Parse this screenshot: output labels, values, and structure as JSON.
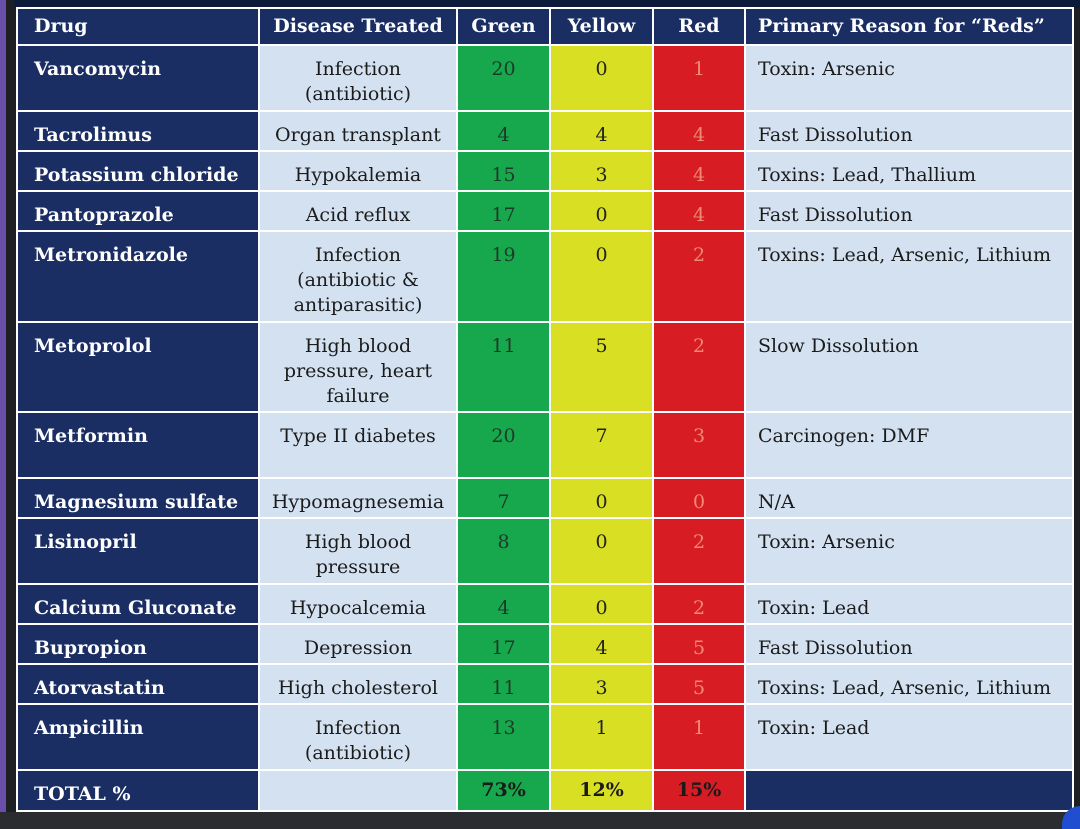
{
  "headers": [
    "Drug",
    "Disease Treated",
    "Green",
    "Yellow",
    "Red",
    "Primary Reason for “Reds”"
  ],
  "rows": [
    {
      "drug": "Vancomycin",
      "disease": [
        "Infection",
        "(antibiotic)"
      ],
      "green": "20",
      "yellow": "0",
      "red": "1",
      "reason": "Toxin: Arsenic"
    },
    {
      "drug": "Tacrolimus",
      "disease": [
        "Organ transplant"
      ],
      "green": "4",
      "yellow": "4",
      "red": "4",
      "reason": "Fast Dissolution"
    },
    {
      "drug": "Potassium chloride",
      "disease": [
        "Hypokalemia"
      ],
      "green": "15",
      "yellow": "3",
      "red": "4",
      "reason": "Toxins: Lead, Thallium"
    },
    {
      "drug": "Pantoprazole",
      "disease": [
        "Acid reflux"
      ],
      "green": "17",
      "yellow": "0",
      "red": "4",
      "reason": "Fast Dissolution"
    },
    {
      "drug": "Metronidazole",
      "disease": [
        "Infection",
        "(antibiotic &",
        "antiparasitic)"
      ],
      "green": "19",
      "yellow": "0",
      "red": "2",
      "reason": "Toxins: Lead, Arsenic, Lithium"
    },
    {
      "drug": "Metoprolol",
      "disease": [
        "High blood",
        "pressure, heart",
        "failure"
      ],
      "green": "11",
      "yellow": "5",
      "red": "2",
      "reason": "Slow Dissolution"
    },
    {
      "drug": "Metformin",
      "disease": [
        "Type II diabetes"
      ],
      "green": "20",
      "yellow": "7",
      "red": "3",
      "reason": "Carcinogen: DMF"
    },
    {
      "drug": "Magnesium sulfate",
      "disease": [
        "Hypomagnesemia"
      ],
      "green": "7",
      "yellow": "0",
      "red": "0",
      "reason": "N/A"
    },
    {
      "drug": "Lisinopril",
      "disease": [
        "High blood",
        "pressure"
      ],
      "green": "8",
      "yellow": "0",
      "red": "2",
      "reason": "Toxin: Arsenic"
    },
    {
      "drug": "Calcium Gluconate",
      "disease": [
        "Hypocalcemia"
      ],
      "green": "4",
      "yellow": "0",
      "red": "2",
      "reason": "Toxin: Lead"
    },
    {
      "drug": "Bupropion",
      "disease": [
        "Depression"
      ],
      "green": "17",
      "yellow": "4",
      "red": "5",
      "reason": "Fast Dissolution"
    },
    {
      "drug": "Atorvastatin",
      "disease": [
        "High cholesterol"
      ],
      "green": "11",
      "yellow": "3",
      "red": "5",
      "reason": "Toxins: Lead, Arsenic, Lithium"
    },
    {
      "drug": "Ampicillin",
      "disease": [
        "Infection",
        "(antibiotic)"
      ],
      "green": "13",
      "yellow": "1",
      "red": "1",
      "reason": "Toxin: Lead"
    }
  ],
  "total": {
    "label": "TOTAL %",
    "green": "73%",
    "yellow": "12%",
    "red": "15%"
  },
  "colors": {
    "navy": "#1a2e63",
    "light": "#d3e1f0",
    "green": "#17a84d",
    "yellow": "#d9df22",
    "red": "#d81c24"
  }
}
